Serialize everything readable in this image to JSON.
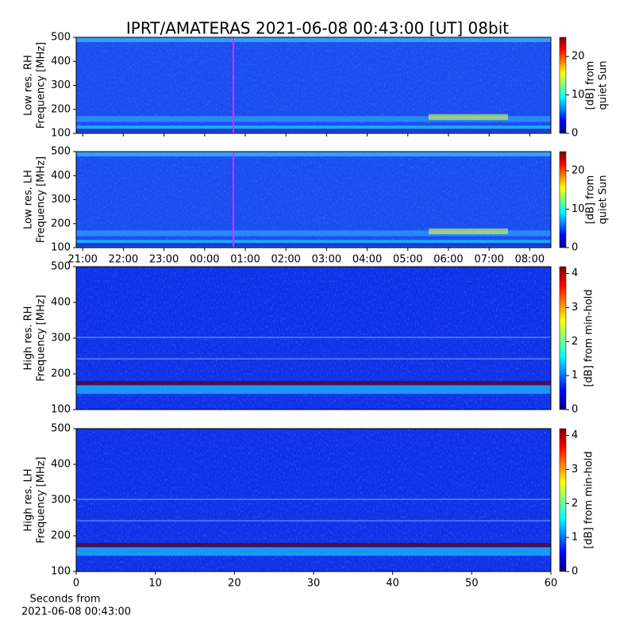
{
  "chart_data": [
    {
      "type": "heatmap",
      "title": "IPRT/AMATERAS 2021-06-08 00:43:00 [UT]   08bit",
      "ylabel": [
        "Low res. RH",
        "Frequency [MHz]"
      ],
      "ylim": [
        100,
        500
      ],
      "yticks": [
        100,
        200,
        300,
        400,
        500
      ],
      "colormap": "jet",
      "clim": [
        0,
        25
      ],
      "cticks": [
        0,
        10,
        20
      ],
      "colorbar_label": [
        "[dB] from",
        "quiet Sun"
      ]
    },
    {
      "type": "heatmap",
      "ylabel": [
        "Low res. LH",
        "Frequency [MHz]"
      ],
      "ylim": [
        100,
        500
      ],
      "yticks": [
        100,
        200,
        300,
        400,
        500
      ],
      "xlim": [
        -0.16,
        11.52
      ],
      "xticks": [
        {
          "value": 0,
          "label": "21:00"
        },
        {
          "value": 1,
          "label": "22:00"
        },
        {
          "value": 2,
          "label": "23:00"
        },
        {
          "value": 3,
          "label": "00:00"
        },
        {
          "value": 4,
          "label": "01:00"
        },
        {
          "value": 5,
          "label": "02:00"
        },
        {
          "value": 6,
          "label": "03:00"
        },
        {
          "value": 7,
          "label": "04:00"
        },
        {
          "value": 8,
          "label": "05:00"
        },
        {
          "value": 9,
          "label": "06:00"
        },
        {
          "value": 10,
          "label": "07:00"
        },
        {
          "value": 11,
          "label": "08:00"
        }
      ],
      "colormap": "jet",
      "clim": [
        0,
        25
      ],
      "cticks": [
        0,
        10,
        20
      ],
      "colorbar_label": [
        "[dB] from",
        "quiet Sun"
      ]
    },
    {
      "type": "heatmap",
      "ylabel": [
        "High res. RH",
        "Frequency [MHz]"
      ],
      "ylim": [
        100,
        500
      ],
      "yticks": [
        100,
        200,
        300,
        400,
        500
      ],
      "colormap": "jet",
      "clim": [
        0,
        4.2
      ],
      "cticks": [
        0,
        1,
        2,
        3,
        4
      ],
      "colorbar_label": [
        "[dB] from min-hold"
      ]
    },
    {
      "type": "heatmap",
      "ylabel": [
        "High res. LH",
        "Frequency [MHz]"
      ],
      "ylim": [
        100,
        500
      ],
      "yticks": [
        100,
        200,
        300,
        400,
        500
      ],
      "xlim": [
        0,
        60
      ],
      "xticks": [
        0,
        10,
        20,
        30,
        40,
        50,
        60
      ],
      "xlabel": [
        "Seconds from",
        "2021-06-08 00:43:00"
      ],
      "colormap": "jet",
      "clim": [
        0,
        4.2
      ],
      "cticks": [
        0,
        1,
        2,
        3,
        4
      ],
      "colorbar_label": [
        "[dB] from min-hold"
      ]
    }
  ]
}
